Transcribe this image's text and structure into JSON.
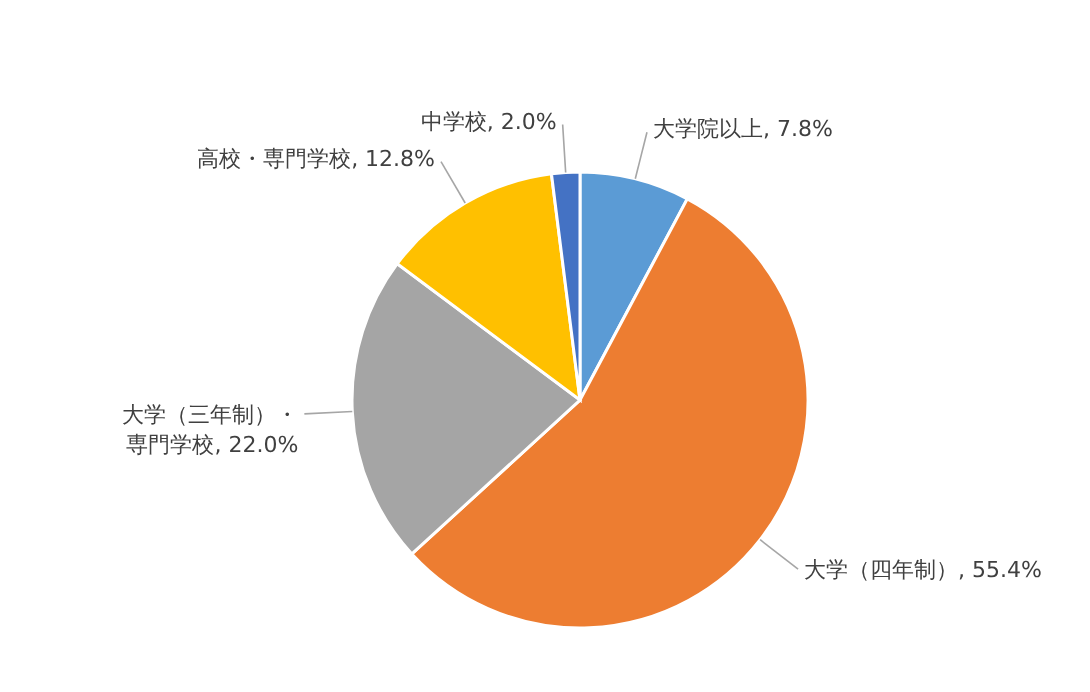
{
  "chart_data": {
    "type": "pie",
    "categories": [
      "大学院以上",
      "大学（四年制）",
      "大学（三年制）・専門学校",
      "高校・専門学校",
      "中学校"
    ],
    "values": [
      7.8,
      55.4,
      22.0,
      12.8,
      2.0
    ],
    "value_labels": [
      "7.8%",
      "55.4%",
      "22.0%",
      "12.8%",
      "2.0%"
    ],
    "colors": [
      "#5b9bd5",
      "#ed7d31",
      "#a5a5a5",
      "#ffc000",
      "#4472c4"
    ],
    "legend": false
  }
}
